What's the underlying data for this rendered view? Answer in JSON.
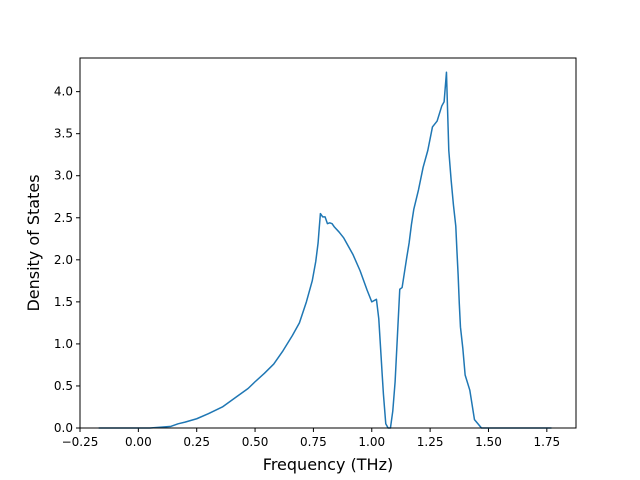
{
  "chart_data": {
    "type": "line",
    "title": "",
    "xlabel": "Frequency (THz)",
    "ylabel": "Density of States",
    "xlim": [
      -0.25,
      1.875
    ],
    "ylim": [
      0.0,
      4.4
    ],
    "xticks": [
      -0.25,
      0.0,
      0.25,
      0.5,
      0.75,
      1.0,
      1.25,
      1.5,
      1.75
    ],
    "xtick_labels": [
      "−0.25",
      "0.00",
      "0.25",
      "0.50",
      "0.75",
      "1.00",
      "1.25",
      "1.50",
      "1.75"
    ],
    "yticks": [
      0.0,
      0.5,
      1.0,
      1.5,
      2.0,
      2.5,
      3.0,
      3.5,
      4.0
    ],
    "ytick_labels": [
      "0.0",
      "0.5",
      "1.0",
      "1.5",
      "2.0",
      "2.5",
      "3.0",
      "3.5",
      "4.0"
    ],
    "grid": false,
    "line_color": "#1f77b4",
    "series": [
      {
        "x": [
          -0.17,
          -0.1,
          0.0,
          0.05,
          0.1,
          0.14,
          0.17,
          0.2,
          0.25,
          0.3,
          0.36,
          0.42,
          0.47,
          0.5,
          0.54,
          0.58,
          0.62,
          0.66,
          0.69,
          0.72,
          0.745,
          0.76,
          0.77,
          0.775,
          0.78,
          0.79,
          0.8,
          0.81,
          0.82,
          0.83,
          0.84,
          0.86,
          0.88,
          0.9,
          0.92,
          0.95,
          0.98,
          1.0,
          1.02,
          1.03,
          1.04,
          1.045,
          1.05,
          1.06,
          1.07,
          1.08,
          1.09,
          1.1,
          1.11,
          1.12,
          1.13,
          1.14,
          1.15,
          1.16,
          1.17,
          1.18,
          1.2,
          1.22,
          1.24,
          1.26,
          1.28,
          1.3,
          1.31,
          1.32,
          1.33,
          1.34,
          1.35,
          1.36,
          1.365,
          1.37,
          1.375,
          1.38,
          1.39,
          1.4,
          1.42,
          1.44,
          1.47,
          1.5,
          1.53,
          1.55,
          1.57,
          1.59,
          1.6,
          1.605,
          1.61,
          1.62,
          1.65,
          1.7,
          1.77
        ],
        "y": [
          0.0,
          0.0,
          0.0,
          0.0,
          0.01,
          0.02,
          0.05,
          0.07,
          0.11,
          0.17,
          0.25,
          0.37,
          0.47,
          0.55,
          0.65,
          0.76,
          0.92,
          1.1,
          1.25,
          1.5,
          1.75,
          1.98,
          2.2,
          2.38,
          2.55,
          2.51,
          2.51,
          2.43,
          2.44,
          2.43,
          2.39,
          2.33,
          2.26,
          2.16,
          2.06,
          1.87,
          1.64,
          1.5,
          1.53,
          1.3,
          0.85,
          0.62,
          0.4,
          0.05,
          0.0,
          0.0,
          0.2,
          0.55,
          1.1,
          1.65,
          1.67,
          1.85,
          2.03,
          2.2,
          2.42,
          2.6,
          2.83,
          3.1,
          3.3,
          3.58,
          3.65,
          3.83,
          3.88,
          4.23,
          3.3,
          2.95,
          2.65,
          2.4,
          2.1,
          1.82,
          1.48,
          1.2,
          0.95,
          0.63,
          0.45,
          0.1,
          0.0,
          0.0,
          0.0,
          0.0,
          0.0,
          0.0,
          0.0,
          0.0,
          0.0,
          0.0,
          0.0,
          0.0,
          0.0
        ]
      }
    ]
  }
}
